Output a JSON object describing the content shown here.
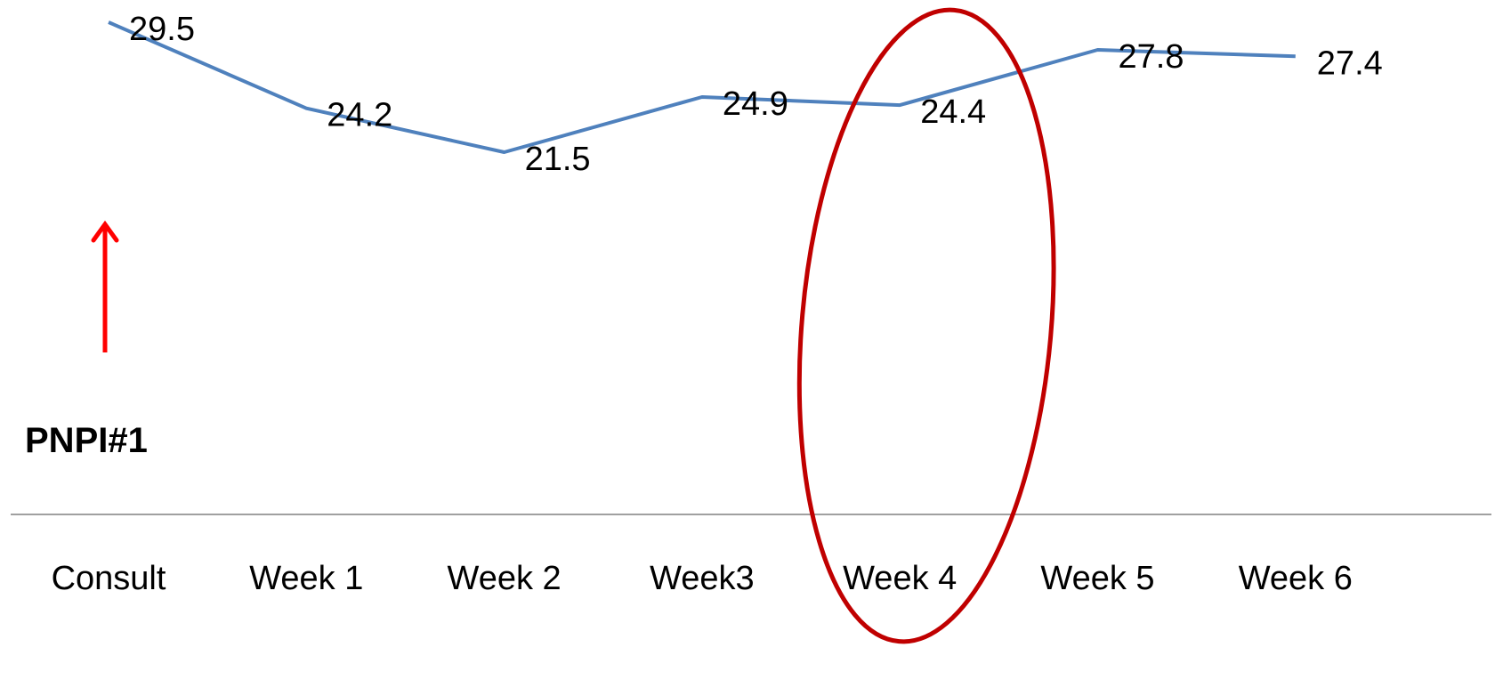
{
  "chart_data": {
    "type": "line",
    "title": "",
    "xlabel": "",
    "ylabel": "",
    "categories": [
      "Consult",
      "Week 1",
      "Week 2",
      "Week3",
      "Week 4",
      "Week 5",
      "Week 6"
    ],
    "series": [
      {
        "values": [
          29.5,
          24.2,
          21.5,
          24.9,
          24.4,
          27.8,
          27.4
        ],
        "color": "#4f81bd"
      }
    ],
    "data_labels": [
      "29.5",
      "24.2",
      "21.5",
      "24.9",
      "24.4",
      "27.8",
      "27.4"
    ],
    "ylim": [
      0,
      30.5
    ],
    "grid": false,
    "legend": "none",
    "annotations": {
      "arrow": {
        "target": "Consult",
        "color": "#ff0000",
        "label": "PNPI#1"
      },
      "highlight": {
        "target": "Week 4",
        "shape": "ellipse",
        "color": "#c00000"
      }
    }
  }
}
